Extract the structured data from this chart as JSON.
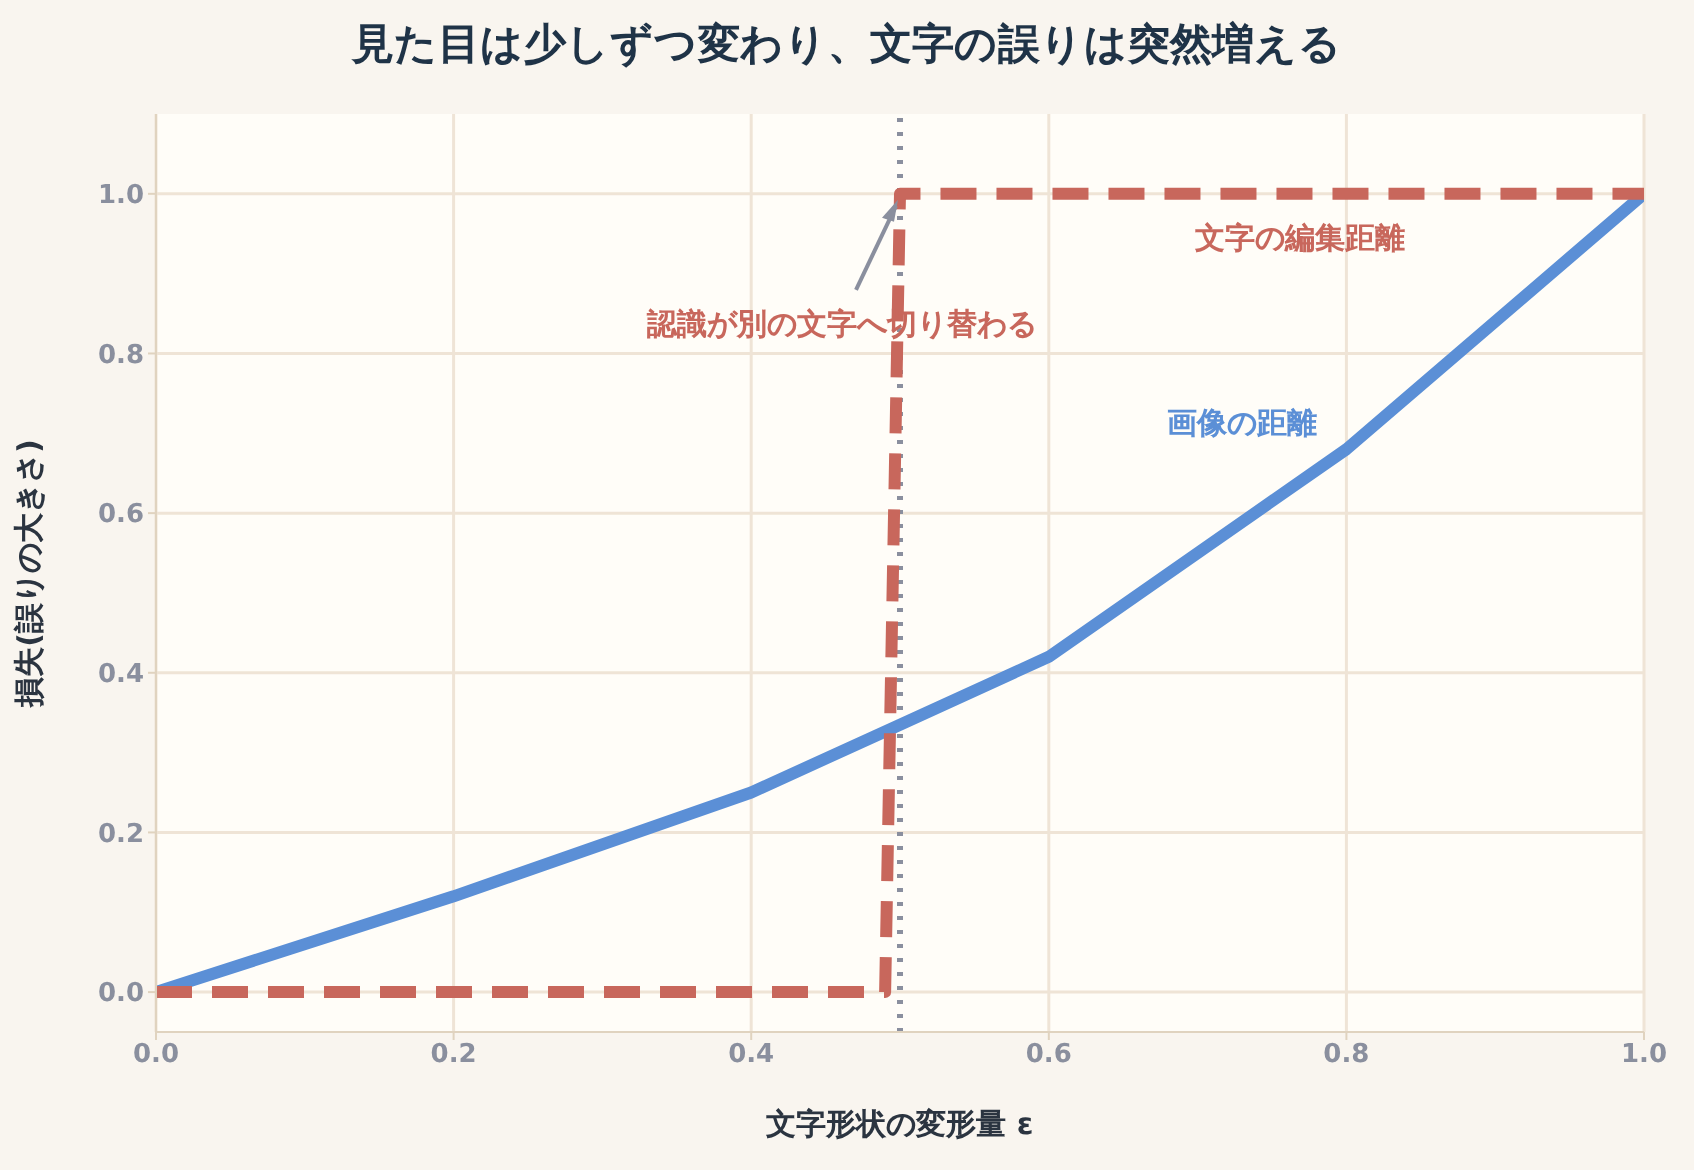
{
  "chart_data": {
    "type": "line",
    "title": "見た目は少しずつ変わり、文字の誤りは突然増える",
    "xlabel": "文字形状の変形量 ε",
    "ylabel": "損失(誤りの大きさ)",
    "xlim": [
      0,
      1
    ],
    "xticks": [
      {
        "value": 0,
        "label": "0.0"
      },
      0.2,
      0.4,
      0.6,
      0.8,
      {
        "value": 1,
        "label": "1.0"
      }
    ],
    "ylim": [
      -0.05,
      1.1
    ],
    "yticks": [
      {
        "value": 0,
        "label": "0.0"
      },
      0.2,
      0.4,
      0.6,
      0.8,
      {
        "value": 1,
        "label": "1.0"
      }
    ],
    "grid": true,
    "marker": "none",
    "series": [
      {
        "name": "画像の距離",
        "color": "#5b8fd6",
        "line_style": "solid",
        "x": [
          0,
          0.2,
          0.4,
          0.5,
          0.6,
          0.8,
          1.0
        ],
        "values": [
          0,
          0.12,
          0.25,
          0.335,
          0.42,
          0.68,
          1.0
        ]
      },
      {
        "name": "文字の編集距離",
        "color": "#c8675c",
        "line_style": "dashed",
        "x": [
          0,
          0.49,
          0.5,
          1.0
        ],
        "values": [
          0,
          0,
          1.0,
          1.0
        ]
      }
    ],
    "ref_lines": [
      {
        "axis": "x",
        "value": 0.5,
        "color": "#8a8f9e",
        "line_style": "dotted"
      }
    ],
    "annotations": [
      {
        "text": "認識が別の文字へ切り替わる",
        "x": 0.5,
        "y": 1.0
      }
    ]
  }
}
